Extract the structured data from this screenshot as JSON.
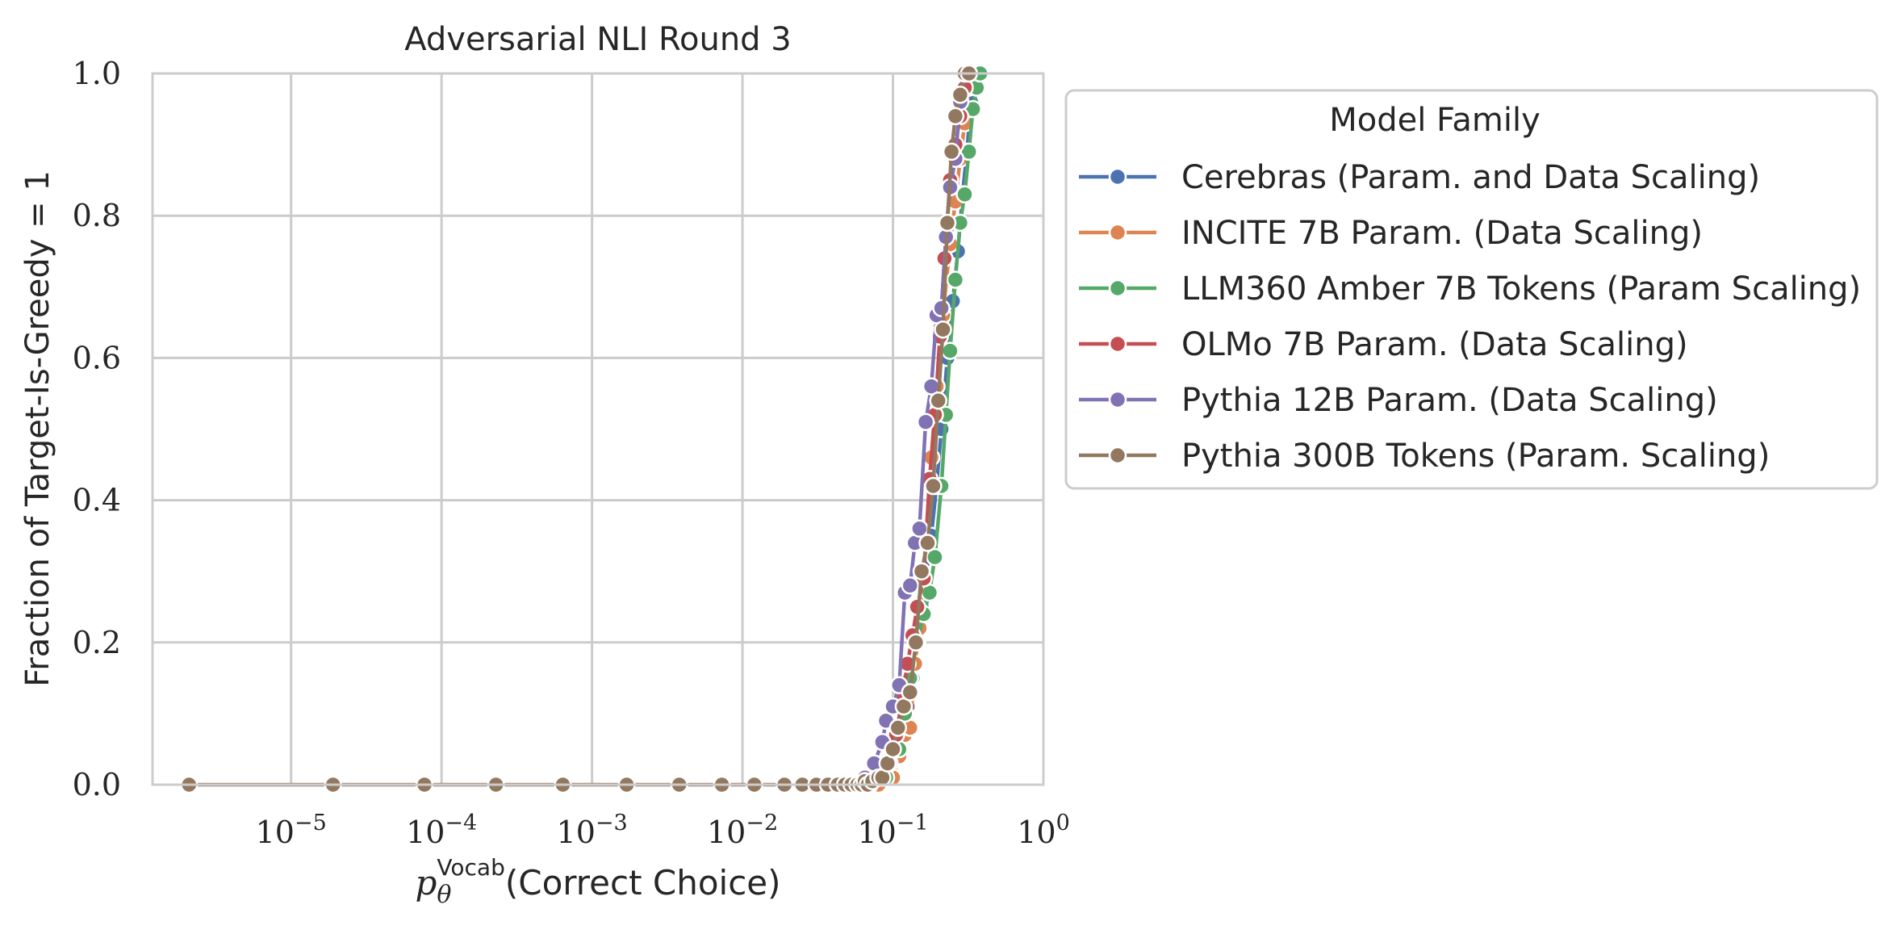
{
  "chart_data": {
    "type": "line",
    "title": "Adversarial NLI Round 3",
    "xlabel_var": "p",
    "xlabel_sub": "θ",
    "xlabel_sup": "Vocab",
    "xlabel_rest": "(Correct Choice)",
    "ylabel": "Fraction of Target-Is-Greedy = 1",
    "xscale": "log",
    "xlim": [
      1.2e-06,
      1.0
    ],
    "ylim": [
      0.0,
      1.0
    ],
    "x_ticks": [
      {
        "value": 1e-05,
        "base": "10",
        "exp": "−5"
      },
      {
        "value": 0.0001,
        "base": "10",
        "exp": "−4"
      },
      {
        "value": 0.001,
        "base": "10",
        "exp": "−3"
      },
      {
        "value": 0.01,
        "base": "10",
        "exp": "−2"
      },
      {
        "value": 0.1,
        "base": "10",
        "exp": "−1"
      },
      {
        "value": 1.0,
        "base": "10",
        "exp": "0"
      }
    ],
    "y_ticks": [
      "0.0",
      "0.2",
      "0.4",
      "0.6",
      "0.8",
      "1.0"
    ],
    "y_tick_values": [
      0.0,
      0.2,
      0.4,
      0.6,
      0.8,
      1.0
    ],
    "grid": true,
    "legend": {
      "title": "Model Family",
      "placement": "outside-right"
    },
    "series": [
      {
        "name": "Cerebras (Param. and Data Scaling)",
        "color": "#4C72B0",
        "x": [
          0.055,
          0.065,
          0.075,
          0.085,
          0.095,
          0.105,
          0.115,
          0.125,
          0.135,
          0.145,
          0.155,
          0.165,
          0.18,
          0.195,
          0.21,
          0.23,
          0.25,
          0.27,
          0.29,
          0.31,
          0.33,
          0.35
        ],
        "y": [
          0.0,
          0.0,
          0.005,
          0.01,
          0.02,
          0.04,
          0.07,
          0.11,
          0.15,
          0.2,
          0.25,
          0.29,
          0.35,
          0.42,
          0.5,
          0.6,
          0.68,
          0.75,
          0.83,
          0.89,
          0.96,
          1.0
        ]
      },
      {
        "name": "INCITE 7B Param. (Data Scaling)",
        "color": "#DD8452",
        "x": [
          0.06,
          0.08,
          0.1,
          0.11,
          0.12,
          0.13,
          0.14,
          0.15,
          0.165,
          0.18,
          0.195,
          0.215,
          0.24,
          0.26,
          0.28,
          0.3,
          0.32,
          0.34
        ],
        "y": [
          0.0,
          0.0,
          0.01,
          0.04,
          0.07,
          0.08,
          0.17,
          0.22,
          0.34,
          0.46,
          0.56,
          0.66,
          0.76,
          0.82,
          0.88,
          0.93,
          0.98,
          1.0
        ]
      },
      {
        "name": "LLM360 Amber 7B Tokens (Param Scaling)",
        "color": "#55A868",
        "x": [
          0.05,
          0.07,
          0.09,
          0.11,
          0.12,
          0.13,
          0.145,
          0.16,
          0.175,
          0.19,
          0.21,
          0.225,
          0.24,
          0.26,
          0.28,
          0.3,
          0.32,
          0.34,
          0.36,
          0.38
        ],
        "y": [
          0.0,
          0.0,
          0.01,
          0.05,
          0.1,
          0.15,
          0.2,
          0.24,
          0.27,
          0.32,
          0.42,
          0.52,
          0.61,
          0.71,
          0.79,
          0.83,
          0.89,
          0.95,
          0.98,
          1.0
        ]
      },
      {
        "name": "OLMo 7B Param. (Data Scaling)",
        "color": "#C44E52",
        "x": [
          0.06,
          0.08,
          0.095,
          0.105,
          0.115,
          0.125,
          0.135,
          0.145,
          0.16,
          0.175,
          0.19,
          0.205,
          0.22,
          0.24,
          0.26,
          0.28,
          0.3,
          0.32
        ],
        "y": [
          0.0,
          0.01,
          0.03,
          0.07,
          0.12,
          0.17,
          0.21,
          0.25,
          0.29,
          0.43,
          0.52,
          0.63,
          0.74,
          0.85,
          0.9,
          0.94,
          0.98,
          1.0
        ]
      },
      {
        "name": "Pythia 12B Param. (Data Scaling)",
        "color": "#8172B3",
        "x": [
          0.05,
          0.065,
          0.075,
          0.085,
          0.09,
          0.1,
          0.11,
          0.12,
          0.13,
          0.14,
          0.15,
          0.165,
          0.18,
          0.195,
          0.21,
          0.225,
          0.24,
          0.26,
          0.28,
          0.3
        ],
        "y": [
          0.0,
          0.01,
          0.03,
          0.06,
          0.09,
          0.11,
          0.14,
          0.27,
          0.28,
          0.34,
          0.36,
          0.51,
          0.56,
          0.66,
          0.67,
          0.77,
          0.84,
          0.88,
          0.96,
          1.0
        ]
      },
      {
        "name": "Pythia 300B Tokens (Param. Scaling)",
        "color": "#937860",
        "x": [
          2.1e-06,
          1.9e-05,
          7.7e-05,
          0.00023,
          0.00064,
          0.0017,
          0.0038,
          0.0073,
          0.012,
          0.019,
          0.025,
          0.031,
          0.037,
          0.043,
          0.048,
          0.053,
          0.058,
          0.062,
          0.065,
          0.068,
          0.073,
          0.08,
          0.085,
          0.092,
          0.1,
          0.108,
          0.118,
          0.13,
          0.142,
          0.155,
          0.17,
          0.185,
          0.2,
          0.215,
          0.23,
          0.245,
          0.26,
          0.28,
          0.3,
          0.32
        ],
        "y": [
          0.0,
          0.0,
          0.0,
          0.0,
          0.0,
          0.0,
          0.0,
          0.0,
          0.0,
          0.0,
          0.0,
          0.0,
          0.0,
          0.0,
          0.0,
          0.0,
          0.0,
          0.0,
          0.005,
          0.0,
          0.005,
          0.01,
          0.01,
          0.03,
          0.05,
          0.08,
          0.11,
          0.13,
          0.2,
          0.3,
          0.34,
          0.42,
          0.54,
          0.64,
          0.79,
          0.89,
          0.94,
          0.97,
          1.0,
          1.0
        ]
      }
    ]
  }
}
